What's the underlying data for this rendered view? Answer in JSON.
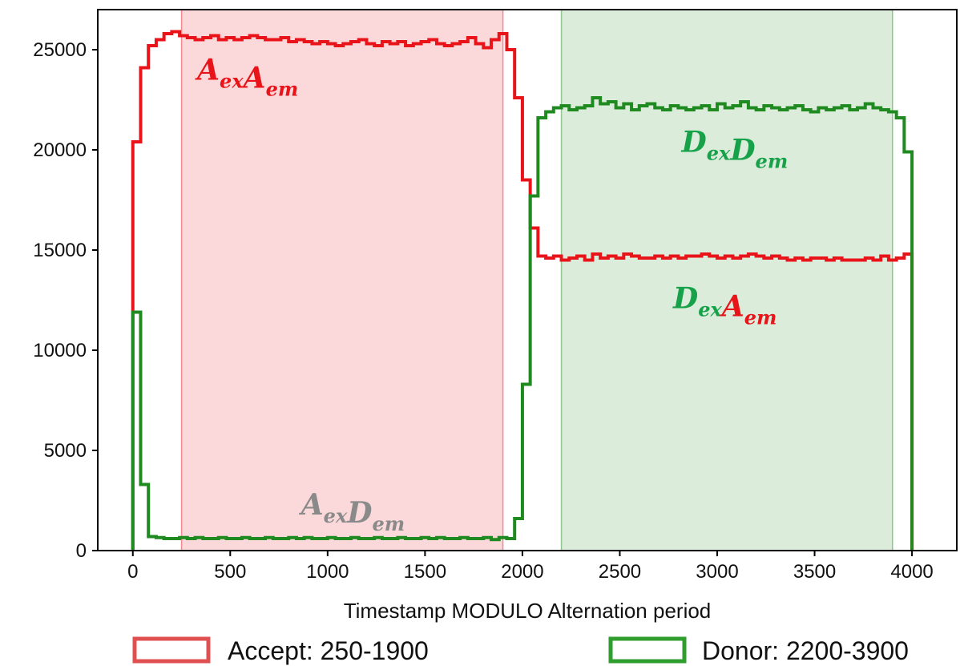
{
  "chart_data": {
    "type": "line",
    "title": "",
    "xlabel": "Timestamp MODULO Alternation period",
    "ylabel": "",
    "xlim": [
      -180,
      4230
    ],
    "ylim": [
      0,
      27000
    ],
    "grid": false,
    "x_ticks": [
      0,
      500,
      1000,
      1500,
      2000,
      2500,
      3000,
      3500,
      4000
    ],
    "y_ticks": [
      0,
      5000,
      10000,
      15000,
      20000,
      25000
    ],
    "colors": {
      "acceptor": "#e8141a",
      "donor": "#1f8a1f",
      "gray": "#8a8a8a",
      "donor_text": "#17a24a"
    },
    "bin_width": 40,
    "series": [
      {
        "color": "#e8141a",
        "x_start": 0,
        "values": [
          20400,
          24100,
          25200,
          25500,
          25800,
          25900,
          25700,
          25600,
          25500,
          25600,
          25700,
          25500,
          25600,
          25500,
          25600,
          25700,
          25600,
          25500,
          25500,
          25600,
          25400,
          25500,
          25400,
          25300,
          25400,
          25300,
          25200,
          25300,
          25400,
          25500,
          25300,
          25200,
          25400,
          25300,
          25400,
          25200,
          25300,
          25400,
          25500,
          25300,
          25200,
          25300,
          25400,
          25600,
          25300,
          25100,
          25500,
          25800,
          25000,
          22600,
          18500,
          16100,
          14700,
          14600,
          14700,
          14500,
          14600,
          14700,
          14500,
          14800,
          14600,
          14700,
          14600,
          14800,
          14700,
          14600,
          14600,
          14700,
          14600,
          14700,
          14600,
          14700,
          14700,
          14800,
          14700,
          14600,
          14700,
          14600,
          14700,
          14800,
          14700,
          14600,
          14700,
          14600,
          14500,
          14600,
          14500,
          14600,
          14600,
          14500,
          14600,
          14500,
          14500,
          14500,
          14600,
          14500,
          14700,
          14500,
          14600,
          14800
        ]
      },
      {
        "color": "#1f8a1f",
        "x_start": 0,
        "values": [
          11900,
          3300,
          700,
          650,
          600,
          600,
          650,
          600,
          650,
          600,
          600,
          650,
          600,
          600,
          650,
          600,
          600,
          650,
          600,
          600,
          650,
          600,
          650,
          600,
          600,
          650,
          600,
          600,
          650,
          600,
          600,
          650,
          600,
          600,
          650,
          600,
          600,
          650,
          600,
          650,
          600,
          600,
          650,
          600,
          600,
          650,
          550,
          650,
          600,
          1600,
          8300,
          17700,
          21600,
          21900,
          22100,
          22200,
          22000,
          22100,
          22200,
          22600,
          22300,
          22400,
          22100,
          22300,
          22000,
          22200,
          22300,
          22100,
          22000,
          22200,
          22100,
          22000,
          22100,
          22200,
          22000,
          22300,
          22100,
          22200,
          22400,
          22100,
          22000,
          22200,
          22100,
          22000,
          22100,
          22200,
          22000,
          21900,
          22100,
          22000,
          22100,
          22200,
          22000,
          22100,
          22300,
          22100,
          22000,
          21900,
          21600,
          19900
        ]
      }
    ],
    "shaded_regions": [
      {
        "from": 250,
        "to": 1900,
        "color": "#e8141a"
      },
      {
        "from": 2200,
        "to": 3900,
        "color": "#1f8a1f"
      }
    ],
    "annotations": [
      {
        "id": "aa",
        "x": 590,
        "y": 23500,
        "parts": [
          {
            "main": "A",
            "sub": "ex",
            "color": "#e8141a"
          },
          {
            "main": "A",
            "sub": "em",
            "color": "#e8141a"
          }
        ]
      },
      {
        "id": "dd",
        "x": 3090,
        "y": 19900,
        "parts": [
          {
            "main": "D",
            "sub": "ex",
            "color": "#17a24a"
          },
          {
            "main": "D",
            "sub": "em",
            "color": "#17a24a"
          }
        ]
      },
      {
        "id": "da",
        "x": 3040,
        "y": 12100,
        "parts": [
          {
            "main": "D",
            "sub": "ex",
            "color": "#17a24a"
          },
          {
            "main": "A",
            "sub": "em",
            "color": "#e8141a"
          }
        ]
      },
      {
        "id": "ad",
        "x": 1130,
        "y": 1800,
        "parts": [
          {
            "main": "A",
            "sub": "ex",
            "color": "#8a8a8a"
          },
          {
            "main": "D",
            "sub": "em",
            "color": "#8a8a8a"
          }
        ]
      }
    ],
    "legend": {
      "placement": "bottom",
      "entries": [
        {
          "label": "Accept: 250-1900",
          "edge": "#e05050",
          "fill": "#ffffff"
        },
        {
          "label": "Donor: 2200-3900",
          "edge": "#2f9e2f",
          "fill": "#ffffff"
        }
      ]
    }
  }
}
